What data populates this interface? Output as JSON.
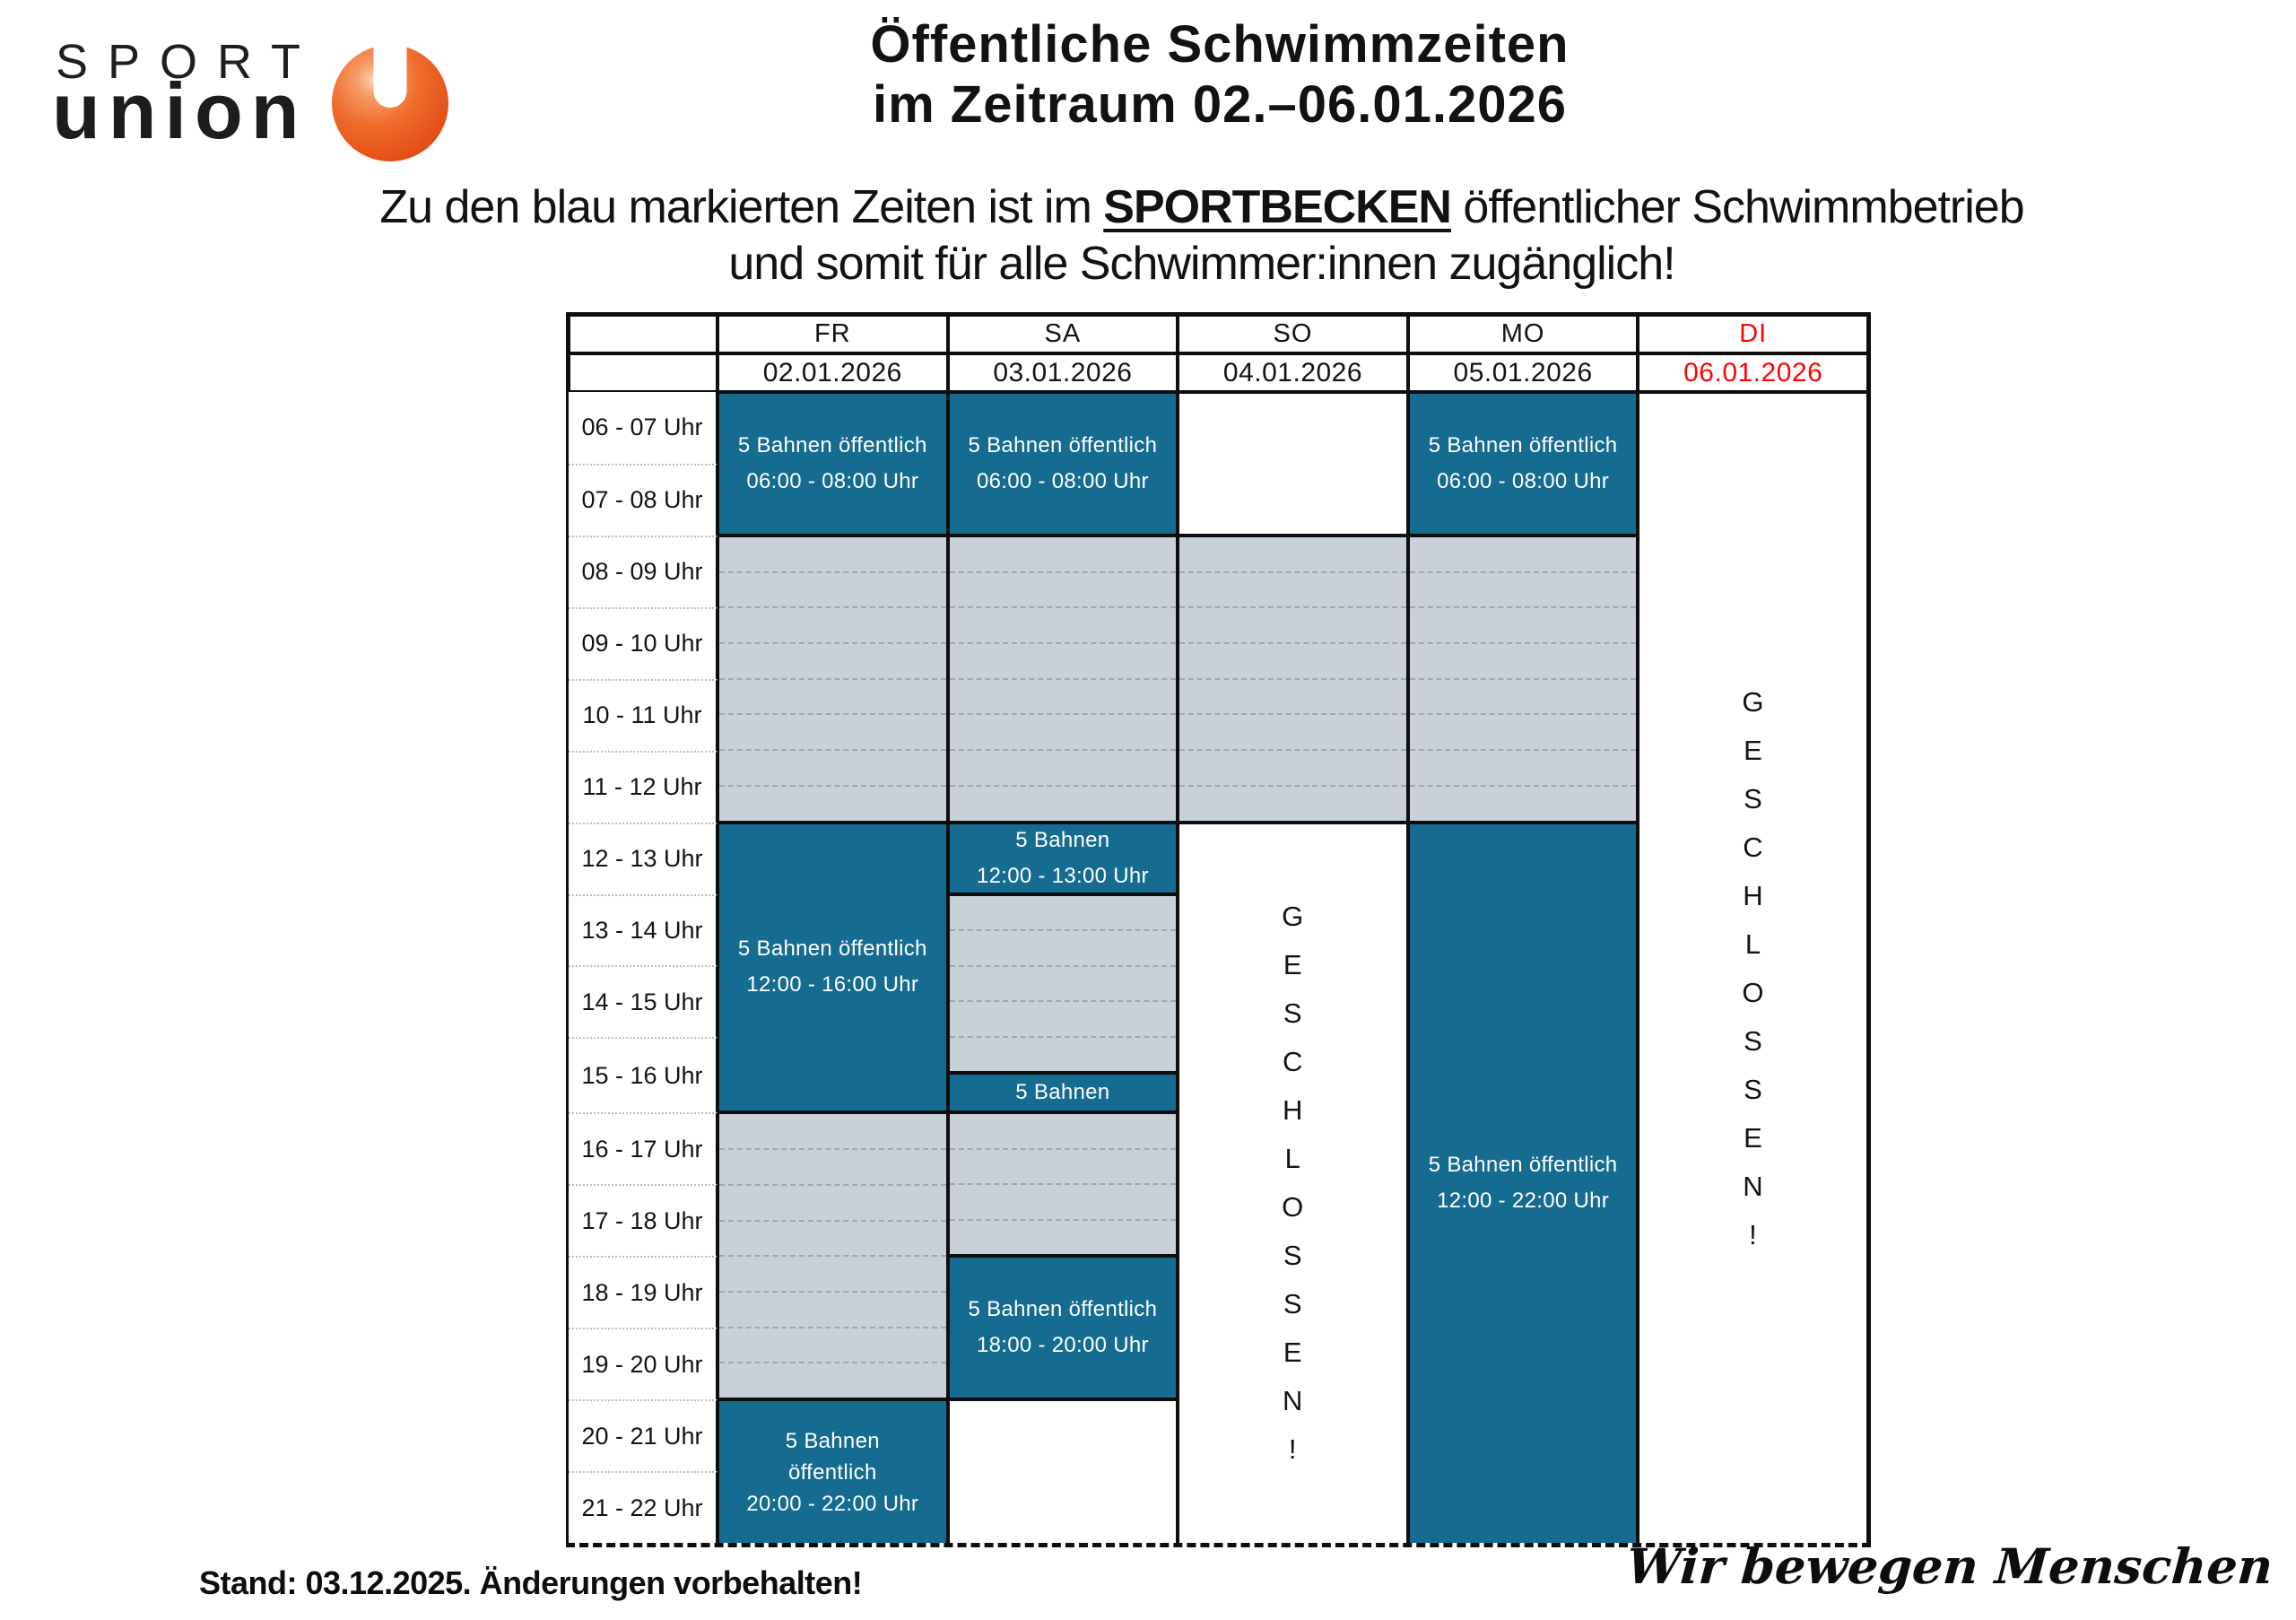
{
  "logo": {
    "text_top": "SPORT",
    "text_bottom": "union"
  },
  "header": {
    "title_line1": "Öffentliche Schwimmzeiten",
    "title_line2": "im Zeitraum 02.–06.01.2026",
    "subtitle_part1": "Zu den blau markierten Zeiten ist im ",
    "subtitle_bold": "SPORTBECKEN",
    "subtitle_part2": " öffentlicher Schwimmbetrieb",
    "subtitle_line2": "und somit für alle Schwimmer:innen zugänglich!"
  },
  "colors": {
    "open_blue": "#166b90",
    "closed_gray": "#c9d0d7",
    "highlight_red": "#fb0505",
    "line_black": "#0e0e0e"
  },
  "table": {
    "day_headers": [
      {
        "day": "FR",
        "date": "02.01.2026"
      },
      {
        "day": "SA",
        "date": "03.01.2026"
      },
      {
        "day": "SO",
        "date": "04.01.2026"
      },
      {
        "day": "MO",
        "date": "05.01.2026"
      },
      {
        "day": "DI",
        "date": "06.01.2026"
      }
    ],
    "time_labels": [
      "06 - 07 Uhr",
      "07 - 08 Uhr",
      "08 - 09 Uhr",
      "09 - 10 Uhr",
      "10 - 11 Uhr",
      "11 - 12 Uhr",
      "12 - 13 Uhr",
      "13 - 14 Uhr",
      "14 - 15 Uhr",
      "15 - 16 Uhr",
      "16 - 17 Uhr",
      "17 - 18 Uhr",
      "18 - 19 Uhr",
      "19 - 20 Uhr",
      "20 - 21 Uhr",
      "21 - 22 Uhr"
    ],
    "fr": {
      "open1_l1": "5 Bahnen öffentlich",
      "open1_l2": "06:00 - 08:00 Uhr",
      "open2_l1": "5 Bahnen öffentlich",
      "open2_l2": "12:00 - 16:00 Uhr",
      "open3_l1": "5 Bahnen",
      "open3_l2": "öffentlich",
      "open3_l3": "20:00 - 22:00 Uhr"
    },
    "sa": {
      "open1_l1": "5 Bahnen öffentlich",
      "open1_l2": "06:00 - 08:00 Uhr",
      "open2_l1": "5 Bahnen",
      "open2_l2": "12:00 - 13:00 Uhr",
      "open3_l1": "5 Bahnen",
      "open4_l1": "5 Bahnen öffentlich",
      "open4_l2": "18:00 - 20:00 Uhr"
    },
    "so": {
      "closed": "GESCHLOSSEN!"
    },
    "mo": {
      "open1_l1": "5 Bahnen öffentlich",
      "open1_l2": "06:00 - 08:00 Uhr",
      "open2_l1": "5 Bahnen öffentlich",
      "open2_l2": "12:00 - 22:00 Uhr"
    },
    "di": {
      "closed": "GESCHLOSSEN!"
    }
  },
  "footer": {
    "stand_note": "Stand: 03.12.2025. Änderungen vorbehalten!",
    "slogan": "Wir bewegen Menschen"
  }
}
